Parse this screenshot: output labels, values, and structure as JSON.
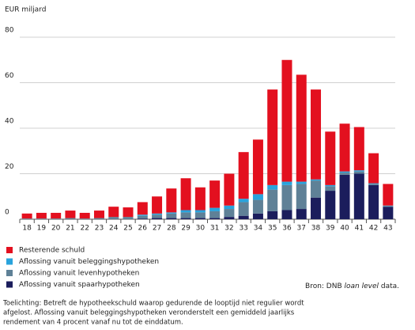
{
  "chart_data": {
    "type": "stacked_bar",
    "y_label": "EUR miljard",
    "categories": [
      "18",
      "19",
      "20",
      "21",
      "22",
      "23",
      "24",
      "25",
      "26",
      "27",
      "28",
      "29",
      "30",
      "31",
      "32",
      "33",
      "34",
      "35",
      "36",
      "37",
      "38",
      "39",
      "40",
      "41",
      "42",
      "43"
    ],
    "series": [
      {
        "name": "Resterende schuld",
        "color": "#e3101f",
        "values": [
          2.2,
          2.5,
          2.5,
          3.3,
          2.5,
          3.3,
          4.5,
          4.2,
          5.5,
          7.5,
          10.5,
          14,
          10,
          12,
          14,
          20.5,
          24,
          42,
          53.5,
          47,
          39.5,
          23.5,
          21,
          19,
          13.2,
          9.5
        ]
      },
      {
        "name": "Aflossing vanuit beleggingshypotheken",
        "color": "#29a3dc",
        "values": [
          0,
          0,
          0,
          0,
          0,
          0,
          0,
          0,
          0.5,
          0.5,
          0.5,
          1,
          1,
          1.5,
          1.5,
          1.5,
          2.5,
          2,
          1.5,
          1,
          0.5,
          0.5,
          0.5,
          0.5,
          0.3,
          0.2
        ]
      },
      {
        "name": "Aflossing vanuit levenhypotheken",
        "color": "#5f8197",
        "values": [
          0.3,
          0.3,
          0.3,
          0.5,
          0.3,
          0.5,
          1,
          1,
          1.2,
          1.5,
          2,
          2.5,
          2.5,
          3,
          3.5,
          6,
          6,
          9.5,
          11,
          11,
          7.5,
          2,
          1,
          1,
          0.5,
          0.3
        ]
      },
      {
        "name": "Aflossing vanuit spaarhypotheken",
        "color": "#1b1d5c",
        "values": [
          0,
          0,
          0,
          0,
          0,
          0,
          0,
          0,
          0.3,
          0.5,
          0.5,
          0.5,
          0.5,
          0.5,
          1,
          1.5,
          2.5,
          3.5,
          4,
          4.5,
          9.5,
          12.5,
          19.5,
          20,
          15,
          5.5
        ]
      }
    ],
    "ylim": [
      0,
      80
    ],
    "yticks": [
      0,
      20,
      40,
      60,
      80
    ],
    "grid": true,
    "source": [
      "Bron: DNB ",
      "loan level",
      " data."
    ],
    "note": [
      "Toelichting: Betreft de hypotheekschuld waarop gedurende de looptijd niet regulier wordt",
      "afgelost. Aflossing vanuit beleggingshypotheken veronderstelt een gemiddeld jaarlijks",
      "rendement van 4 procent vanaf nu tot de einddatum."
    ]
  }
}
